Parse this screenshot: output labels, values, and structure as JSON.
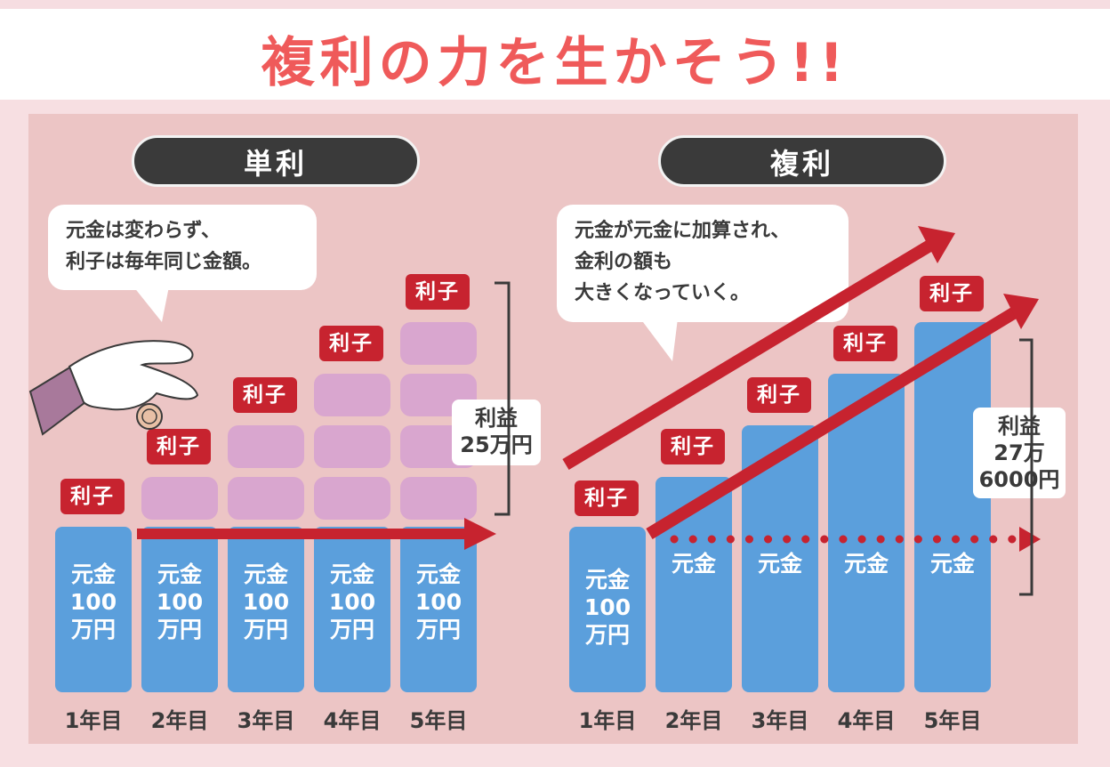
{
  "title": "複利の力を生かそう!!",
  "left": {
    "pill": "単利",
    "bubble": "元金は変わらず、\n利子は毎年同じ金額。",
    "principal_label": "元金\n100\n万円",
    "interest_label": "利子",
    "profit": "利益\n25万円",
    "years": [
      "1年目",
      "2年目",
      "3年目",
      "4年目",
      "5年目"
    ]
  },
  "right": {
    "pill": "複利",
    "bubble": "元金が元金に加算され、\n金利の額も\n大きくなっていく。",
    "principal_label_first": "元金\n100\n万円",
    "principal_label": "元金",
    "interest_label": "利子",
    "profit": "利益\n27万\n6000円",
    "years": [
      "1年目",
      "2年目",
      "3年目",
      "4年目",
      "5年目"
    ]
  },
  "colors": {
    "title": "#ef5a5a",
    "bar": "#5b9fdc",
    "interest_block": "#d9a6cf",
    "interest_tag": "#c7232f",
    "arrow": "#c7232f"
  }
}
